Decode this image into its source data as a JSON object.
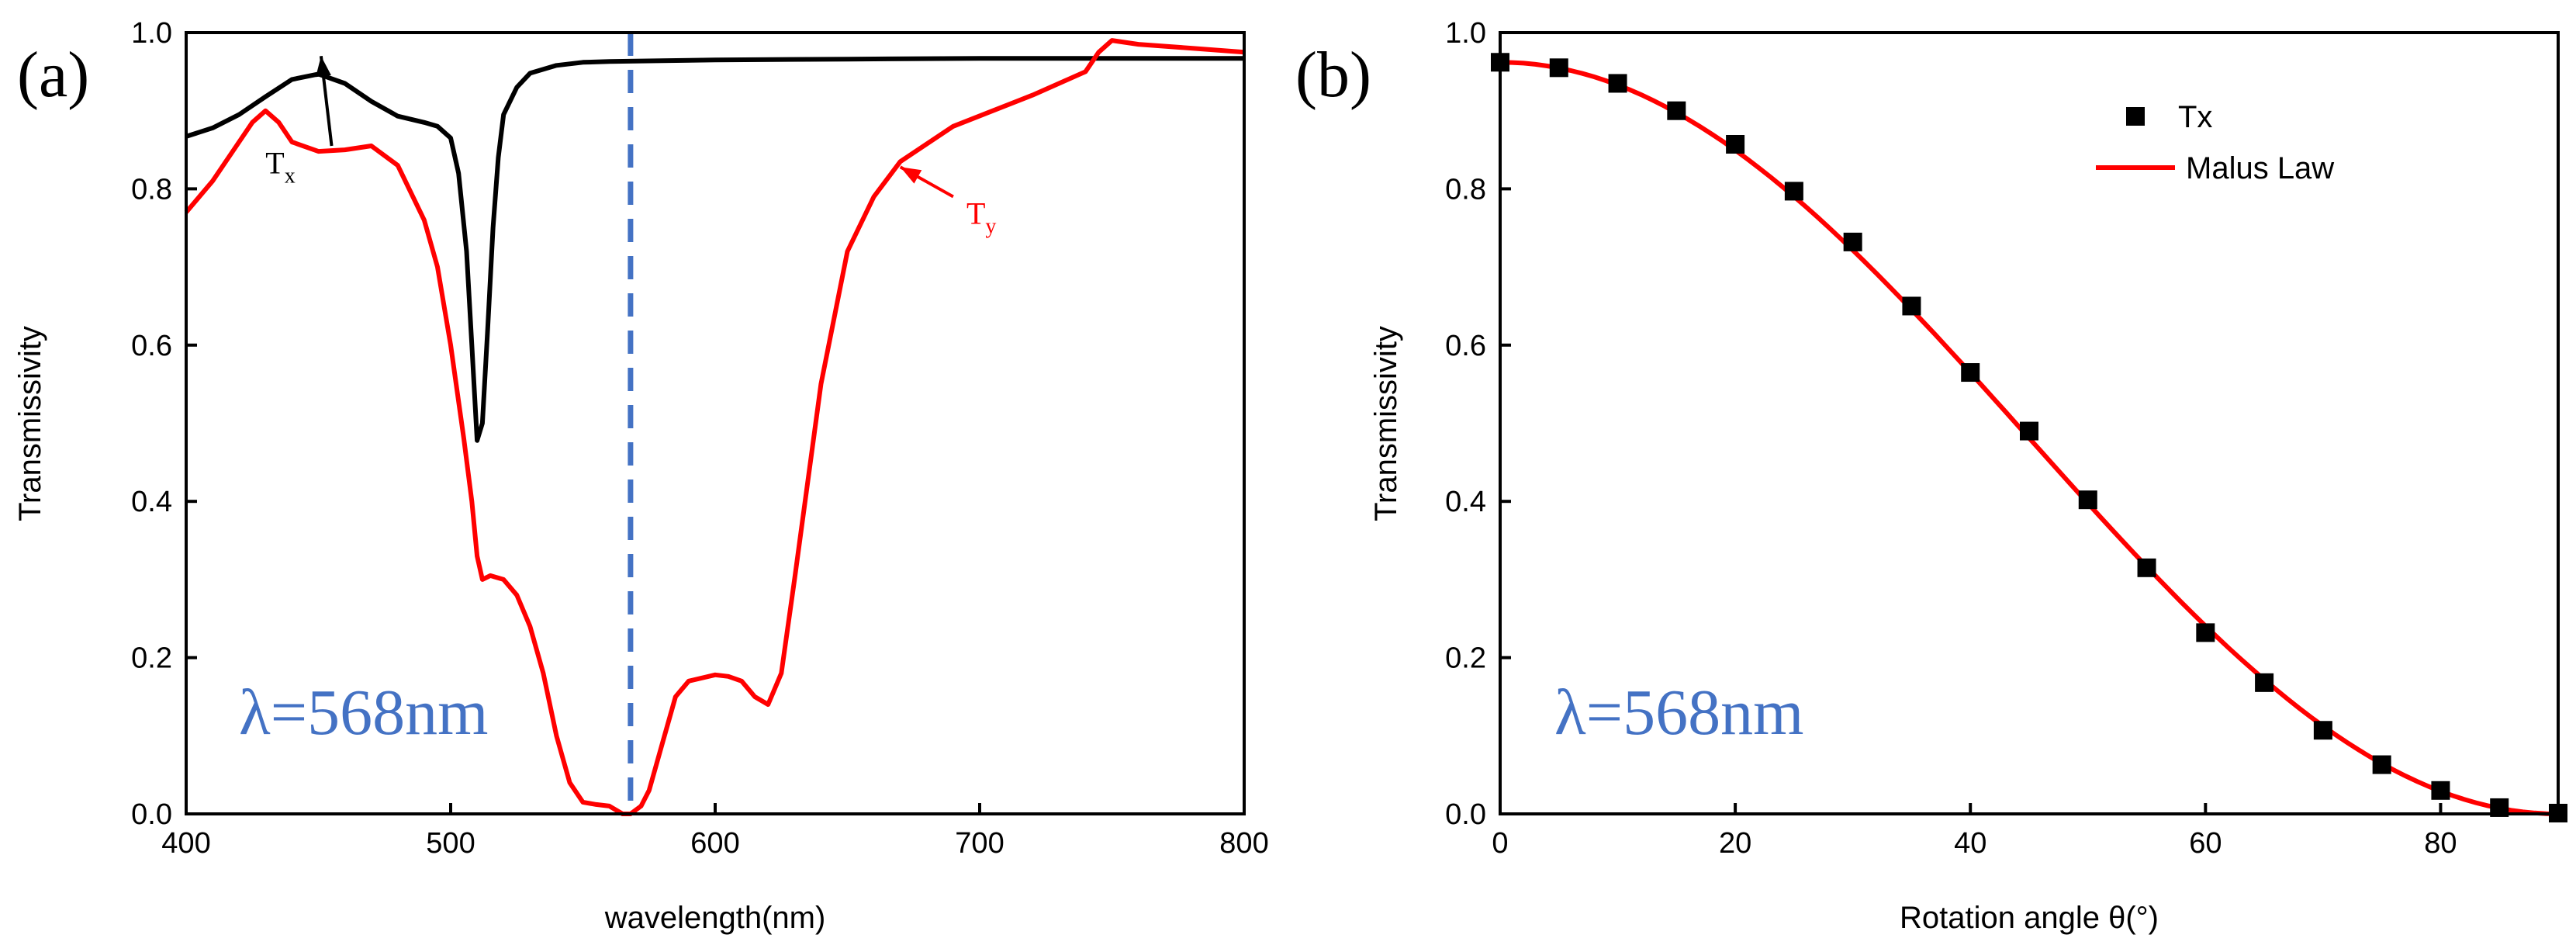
{
  "colors": {
    "tx": "#000000",
    "ty": "#ff0000",
    "dashed": "#4472c4",
    "lambda": "#4472c4"
  },
  "chart_data": [
    {
      "type": "line",
      "panel_label": "(a)",
      "xlabel": "wavelength(nm)",
      "ylabel": "Transmissivity",
      "xlim": [
        400,
        800
      ],
      "ylim": [
        0,
        1.0
      ],
      "x_ticks": [
        400,
        500,
        600,
        700,
        800
      ],
      "y_ticks": [
        0.0,
        0.2,
        0.4,
        0.6,
        0.8,
        1.0
      ],
      "x_tick_labels": [
        "400",
        "500",
        "600",
        "700",
        "800"
      ],
      "y_tick_labels": [
        "0.0",
        "0.2",
        "0.4",
        "0.6",
        "0.8",
        "1.0"
      ],
      "annotation": "λ=568nm",
      "marker_line_x": 568,
      "series": [
        {
          "name": "Tx",
          "label_main": "T",
          "label_sub": "x",
          "label_pos": [
            430,
            0.82
          ],
          "arrow_from": [
            455,
            0.855
          ],
          "arrow_to": [
            451,
            0.97
          ],
          "x": [
            400,
            410,
            420,
            430,
            440,
            450,
            460,
            470,
            480,
            490,
            495,
            500,
            503,
            506,
            508,
            510,
            512,
            514,
            516,
            518,
            520,
            525,
            530,
            540,
            550,
            560,
            580,
            600,
            650,
            700,
            750,
            800
          ],
          "y": [
            0.867,
            0.878,
            0.895,
            0.918,
            0.94,
            0.947,
            0.935,
            0.912,
            0.893,
            0.885,
            0.88,
            0.865,
            0.82,
            0.72,
            0.6,
            0.478,
            0.5,
            0.62,
            0.75,
            0.84,
            0.895,
            0.93,
            0.948,
            0.958,
            0.962,
            0.963,
            0.964,
            0.965,
            0.966,
            0.967,
            0.967,
            0.967
          ]
        },
        {
          "name": "Ty",
          "label_main": "T",
          "label_sub": "y",
          "label_pos": [
            695,
            0.755
          ],
          "arrow_from": [
            690,
            0.79
          ],
          "arrow_to": [
            670,
            0.828
          ],
          "x": [
            400,
            410,
            420,
            425,
            430,
            435,
            440,
            450,
            460,
            470,
            480,
            490,
            495,
            500,
            505,
            508,
            510,
            512,
            515,
            520,
            525,
            530,
            535,
            540,
            545,
            550,
            555,
            560,
            565,
            568,
            572,
            575,
            580,
            585,
            590,
            600,
            605,
            610,
            615,
            620,
            625,
            630,
            640,
            650,
            660,
            670,
            690,
            720,
            740,
            745,
            750,
            760,
            780,
            800
          ],
          "y": [
            0.77,
            0.81,
            0.86,
            0.885,
            0.9,
            0.885,
            0.86,
            0.848,
            0.85,
            0.855,
            0.83,
            0.76,
            0.7,
            0.6,
            0.48,
            0.4,
            0.33,
            0.3,
            0.305,
            0.3,
            0.28,
            0.24,
            0.18,
            0.1,
            0.04,
            0.015,
            0.012,
            0.01,
            0.0,
            0.0,
            0.01,
            0.03,
            0.09,
            0.15,
            0.17,
            0.178,
            0.176,
            0.17,
            0.15,
            0.14,
            0.18,
            0.3,
            0.55,
            0.72,
            0.79,
            0.835,
            0.88,
            0.92,
            0.95,
            0.975,
            0.99,
            0.985,
            0.98,
            0.975
          ]
        }
      ]
    },
    {
      "type": "scatter",
      "panel_label": "(b)",
      "xlabel": "Rotation angle θ(°)",
      "ylabel": "Transmissivity",
      "xlim": [
        0,
        90
      ],
      "ylim": [
        0,
        1.0
      ],
      "x_ticks": [
        0,
        20,
        40,
        60,
        80
      ],
      "y_ticks": [
        0.0,
        0.2,
        0.4,
        0.6,
        0.8,
        1.0
      ],
      "x_tick_labels": [
        "0",
        "20",
        "40",
        "60",
        "80"
      ],
      "y_tick_labels": [
        "0.0",
        "0.2",
        "0.4",
        "0.6",
        "0.8",
        "1.0"
      ],
      "annotation": "λ=568nm",
      "legend": [
        "Tx",
        "Malus Law"
      ],
      "legend_position": "top-right",
      "series": [
        {
          "name": "Tx",
          "marker": "square",
          "x": [
            0,
            5,
            10,
            15,
            20,
            25,
            30,
            35,
            40,
            45,
            50,
            55,
            60,
            65,
            70,
            75,
            80,
            85,
            90
          ],
          "y": [
            0.962,
            0.955,
            0.935,
            0.9,
            0.857,
            0.797,
            0.732,
            0.65,
            0.565,
            0.49,
            0.402,
            0.315,
            0.232,
            0.168,
            0.107,
            0.063,
            0.03,
            0.008,
            0.001
          ]
        },
        {
          "name": "Malus Law",
          "line": "solid",
          "formula": "0.962*cos^2(theta)",
          "amplitude": 0.962
        }
      ]
    }
  ]
}
